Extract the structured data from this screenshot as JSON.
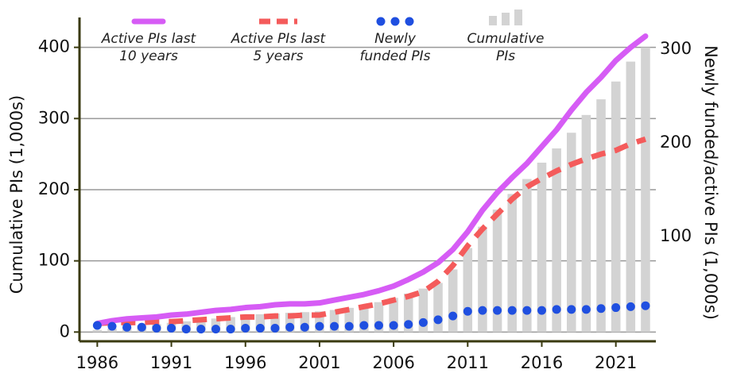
{
  "chart_data": {
    "type": "combo",
    "y_label": "Cumulative PIs (1,000s)",
    "y2_label": "Newly funded/active PIs (1,000s)",
    "x": [
      1986,
      1987,
      1988,
      1989,
      1990,
      1991,
      1992,
      1993,
      1994,
      1995,
      1996,
      1997,
      1998,
      1999,
      2000,
      2001,
      2002,
      2003,
      2004,
      2005,
      2006,
      2007,
      2008,
      2009,
      2010,
      2011,
      2012,
      2013,
      2014,
      2015,
      2016,
      2017,
      2018,
      2019,
      2020,
      2021,
      2022,
      2023
    ],
    "xlim": [
      1984.8,
      2023.7
    ],
    "xticks": [
      1986,
      1991,
      1996,
      2001,
      2006,
      2011,
      2016,
      2021
    ],
    "ylim": [
      -13,
      442
    ],
    "yticks": [
      0,
      100,
      200,
      300,
      400
    ],
    "y2lim": [
      -12,
      334
    ],
    "y2ticks": [
      100,
      200,
      300
    ],
    "grid": true,
    "series": [
      {
        "name": "Active PIs last 10 years",
        "kind": "line",
        "color": "#d65cf5",
        "axis": "y2",
        "values": [
          7,
          10,
          12,
          13,
          14,
          16,
          17,
          19,
          21,
          22,
          24,
          25,
          27,
          28,
          28,
          29,
          32,
          35,
          38,
          42,
          47,
          54,
          62,
          72,
          86,
          105,
          128,
          147,
          163,
          178,
          196,
          214,
          235,
          254,
          270,
          288,
          302,
          314
        ]
      },
      {
        "name": "Active PIs last 5 years",
        "kind": "dashed",
        "color": "#f45b5b",
        "axis": "y2",
        "values": [
          7,
          8,
          8,
          8,
          9,
          9,
          10,
          11,
          12,
          13,
          14,
          14,
          15,
          15,
          16,
          16,
          19,
          22,
          25,
          28,
          32,
          36,
          41,
          52,
          69,
          90,
          108,
          124,
          140,
          153,
          162,
          170,
          177,
          183,
          188,
          192,
          199,
          204
        ]
      },
      {
        "name": "Newly funded PIs",
        "kind": "dots",
        "color": "#1f4fe0",
        "axis": "y2",
        "values": [
          5,
          4,
          3,
          3,
          2,
          2,
          1,
          1,
          1,
          1,
          2,
          2,
          2,
          3,
          3,
          4,
          4,
          4,
          5,
          5,
          5,
          6,
          8,
          11,
          15,
          20,
          21,
          21,
          21,
          21,
          21,
          22,
          22,
          22,
          23,
          24,
          25,
          26
        ]
      },
      {
        "name": "Cumulative PIs",
        "kind": "bar",
        "color": "#d3d3d3",
        "values": [
          3,
          5,
          7,
          9,
          11,
          13,
          15,
          17,
          19,
          21,
          23,
          25,
          26,
          27,
          28,
          29,
          31,
          34,
          37,
          42,
          48,
          54,
          61,
          69,
          88,
          118,
          148,
          172,
          194,
          215,
          238,
          258,
          280,
          305,
          327,
          352,
          380,
          400
        ]
      }
    ]
  }
}
